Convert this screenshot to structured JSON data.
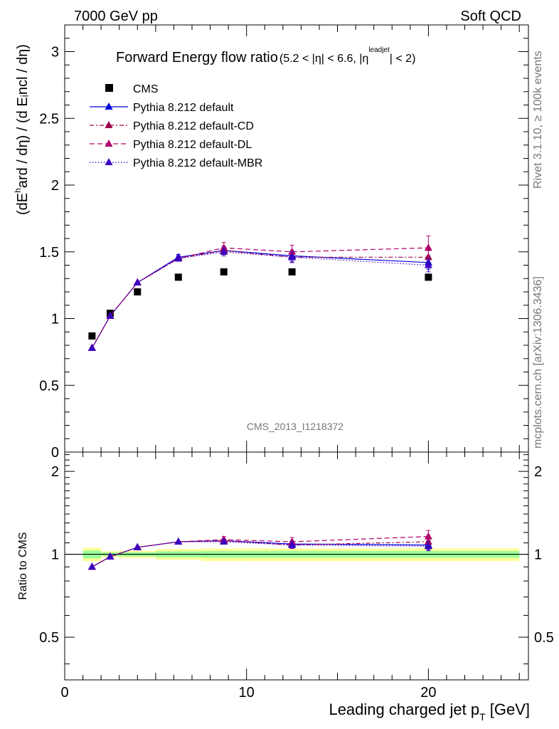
{
  "header": {
    "left": "7000 GeV pp",
    "right": "Soft QCD",
    "side_rivet": "Rivet 3.1.10, ≥ 100k events",
    "side_mcplots": "mcplots.cern.ch [arXiv:1306.3436]",
    "watermark": "CMS_2013_I1218372"
  },
  "colors": {
    "cms": "#000000",
    "default": "#0000dd",
    "cd": "#a0004a",
    "dl": "#b0006a",
    "mbr": "#3a00c0",
    "band_yellow": "#ffff99",
    "band_green": "#99ff99"
  },
  "chart_data": [
    {
      "type": "line",
      "title": "Forward Energy flow ratio",
      "title_sub": "(5.2 < |η| < 6.6, |η",
      "title_sup": "leadjet",
      "title_end": "| < 2)",
      "ylabel": "(dE^hard / dη) / (d Eincl / dη)",
      "ylim": [
        0,
        3.2
      ],
      "yticks": [
        0,
        0.5,
        1,
        1.5,
        2,
        2.5,
        3
      ],
      "ytick_labels": [
        "0",
        "0.5",
        "1",
        "1.5",
        "2",
        "2.5",
        "3"
      ],
      "xlim": [
        0,
        25.5
      ],
      "legend_position": "top-left",
      "series": [
        {
          "name": "CMS",
          "key": "cms",
          "x": [
            1.5,
            2.5,
            4,
            6.25,
            8.75,
            12.5,
            20
          ],
          "y": [
            0.87,
            1.04,
            1.2,
            1.31,
            1.35,
            1.35,
            1.31
          ]
        },
        {
          "name": "Pythia 8.212 default",
          "key": "default",
          "x": [
            1.5,
            2.5,
            4,
            6.25,
            8.75,
            12.5,
            20
          ],
          "y": [
            0.78,
            1.02,
            1.27,
            1.46,
            1.51,
            1.47,
            1.42
          ],
          "err": [
            0.01,
            0.01,
            0.01,
            0.02,
            0.03,
            0.04,
            0.05
          ]
        },
        {
          "name": "Pythia 8.212 default-CD",
          "key": "cd",
          "x": [
            1.5,
            2.5,
            4,
            6.25,
            8.75,
            12.5,
            20
          ],
          "y": [
            0.78,
            1.02,
            1.27,
            1.45,
            1.51,
            1.46,
            1.46
          ],
          "err": [
            0.01,
            0.01,
            0.01,
            0.02,
            0.03,
            0.04,
            0.05
          ]
        },
        {
          "name": "Pythia 8.212 default-DL",
          "key": "dl",
          "x": [
            1.5,
            2.5,
            4,
            6.25,
            8.75,
            12.5,
            20
          ],
          "y": [
            0.78,
            1.02,
            1.27,
            1.45,
            1.53,
            1.5,
            1.53
          ],
          "err": [
            0.01,
            0.01,
            0.01,
            0.02,
            0.04,
            0.05,
            0.09
          ]
        },
        {
          "name": "Pythia 8.212 default-MBR",
          "key": "mbr",
          "x": [
            1.5,
            2.5,
            4,
            6.25,
            8.75,
            12.5,
            20
          ],
          "y": [
            0.78,
            1.02,
            1.27,
            1.45,
            1.5,
            1.46,
            1.4
          ],
          "err": [
            0.01,
            0.01,
            0.01,
            0.02,
            0.03,
            0.04,
            0.05
          ]
        }
      ]
    },
    {
      "type": "line",
      "ylabel": "Ratio to CMS",
      "xlabel": "Leading charged jet p",
      "xlabel_sub": "T",
      "xlabel_end": " [GeV]",
      "ylim": [
        0.35,
        2.35
      ],
      "log_y": true,
      "yticks": [
        0.5,
        1,
        2
      ],
      "ytick_labels": [
        "0.5",
        "1",
        "2"
      ],
      "xlim": [
        0,
        25.5
      ],
      "xticks": [
        0,
        10,
        20
      ],
      "xtick_labels": [
        "0",
        "10",
        "20"
      ],
      "bands": [
        {
          "x0": 1,
          "x1": 2,
          "yellow": [
            0.944,
            1.056
          ],
          "green": [
            0.968,
            1.032
          ]
        },
        {
          "x0": 2,
          "x1": 3,
          "yellow": [
            0.975,
            1.025
          ],
          "green": [
            0.985,
            1.015
          ]
        },
        {
          "x0": 3,
          "x1": 5,
          "yellow": [
            0.97,
            1.03
          ],
          "green": [
            0.983,
            1.017
          ]
        },
        {
          "x0": 5,
          "x1": 7.5,
          "yellow": [
            0.955,
            1.045
          ],
          "green": [
            0.975,
            1.025
          ]
        },
        {
          "x0": 7.5,
          "x1": 10,
          "yellow": [
            0.945,
            1.05
          ],
          "green": [
            0.972,
            1.028
          ]
        },
        {
          "x0": 10,
          "x1": 15,
          "yellow": [
            0.945,
            1.05
          ],
          "green": [
            0.972,
            1.028
          ]
        },
        {
          "x0": 15,
          "x1": 25,
          "yellow": [
            0.945,
            1.05
          ],
          "green": [
            0.972,
            1.028
          ]
        }
      ],
      "series": [
        {
          "key": "default",
          "x": [
            1.5,
            2.5,
            4,
            6.25,
            8.75,
            12.5,
            20
          ],
          "y": [
            0.9,
            0.98,
            1.06,
            1.11,
            1.12,
            1.09,
            1.08
          ],
          "err": [
            0.01,
            0.01,
            0.01,
            0.01,
            0.02,
            0.03,
            0.04
          ]
        },
        {
          "key": "cd",
          "x": [
            1.5,
            2.5,
            4,
            6.25,
            8.75,
            12.5,
            20
          ],
          "y": [
            0.9,
            0.98,
            1.06,
            1.11,
            1.12,
            1.08,
            1.11
          ],
          "err": [
            0.01,
            0.01,
            0.01,
            0.01,
            0.02,
            0.03,
            0.04
          ]
        },
        {
          "key": "dl",
          "x": [
            1.5,
            2.5,
            4,
            6.25,
            8.75,
            12.5,
            20
          ],
          "y": [
            0.9,
            0.98,
            1.06,
            1.11,
            1.13,
            1.11,
            1.16
          ],
          "err": [
            0.01,
            0.01,
            0.01,
            0.01,
            0.03,
            0.04,
            0.06
          ]
        },
        {
          "key": "mbr",
          "x": [
            1.5,
            2.5,
            4,
            6.25,
            8.75,
            12.5,
            20
          ],
          "y": [
            0.9,
            0.98,
            1.06,
            1.11,
            1.11,
            1.08,
            1.07
          ],
          "err": [
            0.01,
            0.01,
            0.01,
            0.01,
            0.02,
            0.03,
            0.04
          ]
        }
      ]
    }
  ]
}
